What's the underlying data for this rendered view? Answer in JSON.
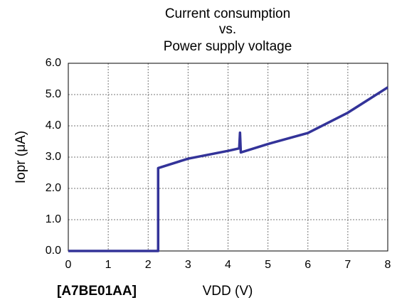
{
  "chart_data": {
    "type": "line",
    "title": [
      "Current consumption",
      "vs.",
      "Power supply voltage"
    ],
    "x_label": "VDD (V)",
    "y_label": "Iopr (μA)",
    "annotation": "[A7BE01AA]",
    "x": [
      0,
      2.25,
      2.25,
      3,
      4,
      4.28,
      4.3,
      4.32,
      5,
      6,
      7,
      8
    ],
    "series": [
      {
        "name": "Iopr",
        "color": "#333399",
        "values": [
          0,
          0,
          2.65,
          2.95,
          3.2,
          3.28,
          3.78,
          3.15,
          3.42,
          3.77,
          4.42,
          5.23
        ]
      }
    ],
    "xlim": [
      0,
      8
    ],
    "xticks": [
      0,
      1,
      2,
      3,
      4,
      5,
      6,
      7,
      8
    ],
    "ylim": [
      0,
      6
    ],
    "yticks": [
      {
        "value": 0,
        "label": "0.0"
      },
      {
        "value": 1,
        "label": "1.0"
      },
      {
        "value": 2,
        "label": "2.0"
      },
      {
        "value": 3,
        "label": "3.0"
      },
      {
        "value": 4,
        "label": "4.0"
      },
      {
        "value": 5,
        "label": "5.0"
      },
      {
        "value": 6,
        "label": "6.0"
      }
    ],
    "grid": true
  }
}
